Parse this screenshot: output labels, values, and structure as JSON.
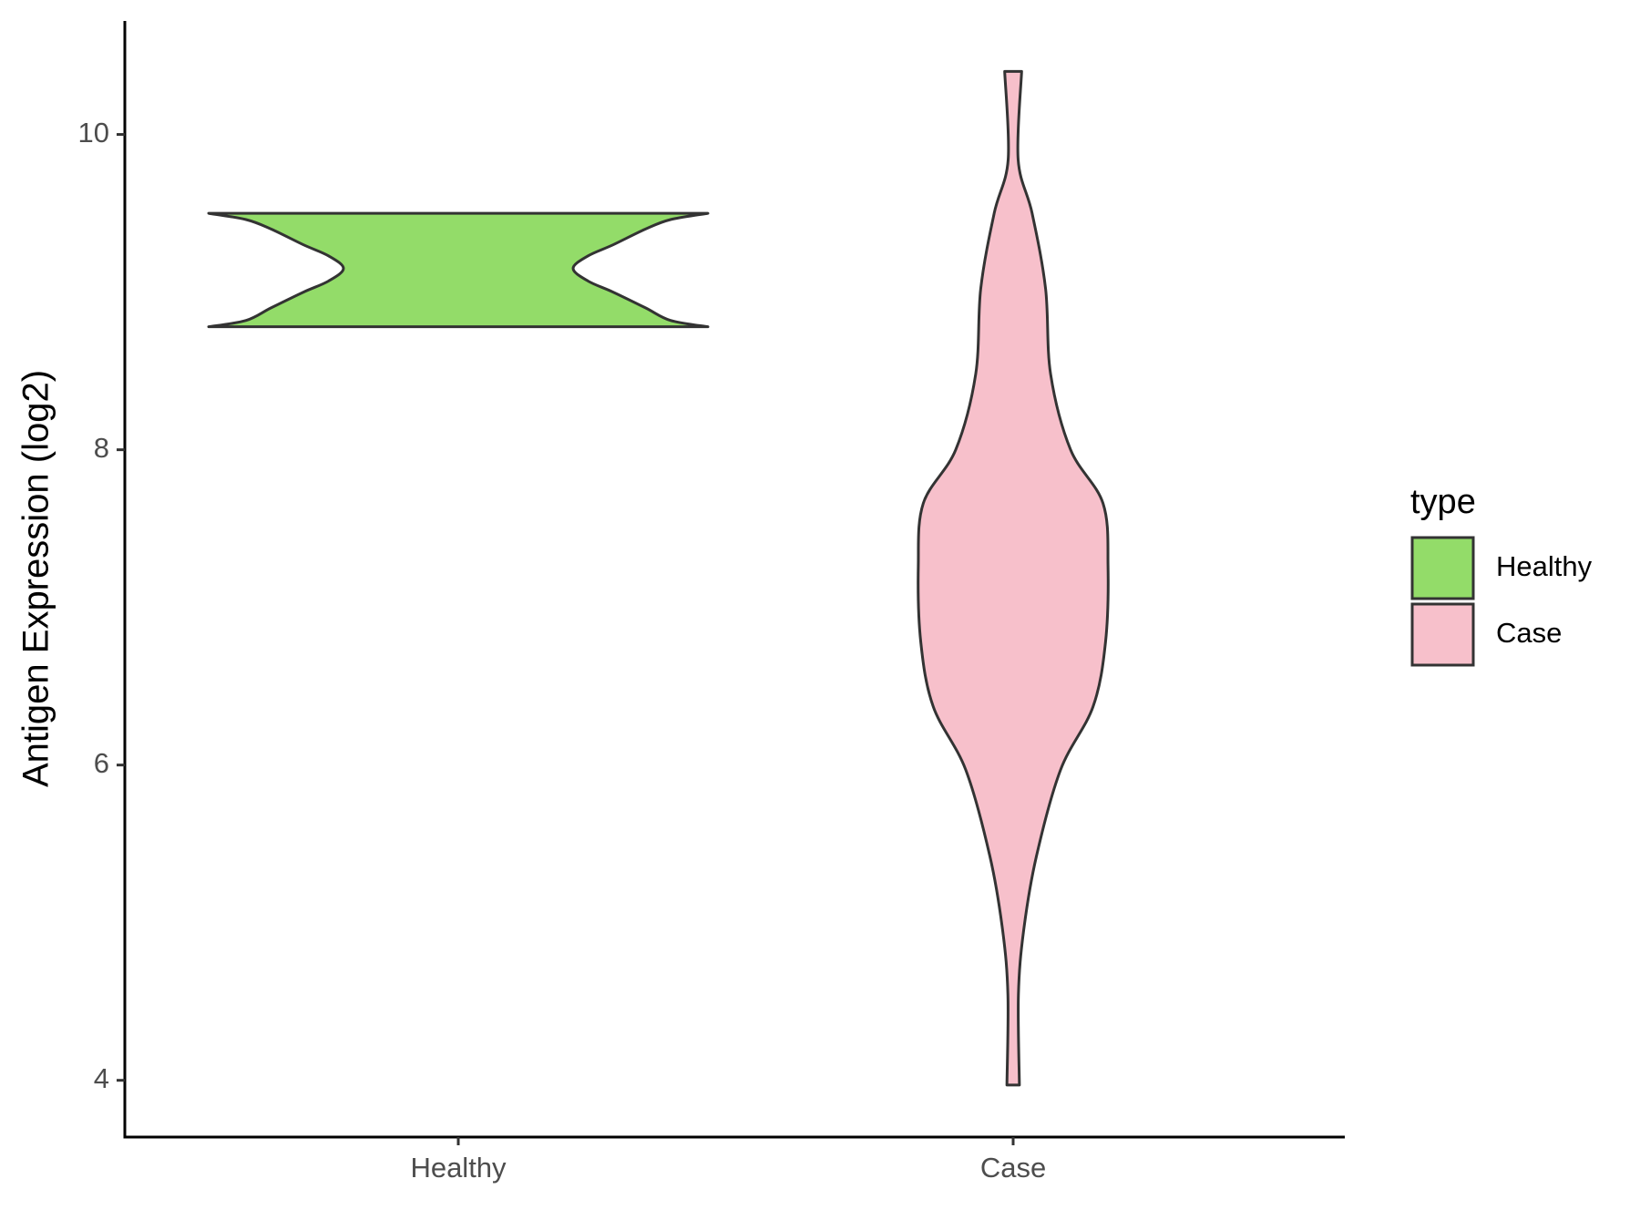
{
  "chart_data": {
    "type": "violin",
    "y_label": "Antigen Expression (log2)",
    "legend_title": "type",
    "categories": [
      "Healthy",
      "Case"
    ],
    "series": [
      {
        "name": "Healthy",
        "color": "#93dc69",
        "y": [
          8.78,
          8.82,
          8.9,
          9.0,
          9.07,
          9.15,
          9.23,
          9.3,
          9.4,
          9.46,
          9.5
        ],
        "width": [
          1.0,
          0.85,
          0.75,
          0.62,
          0.52,
          0.46,
          0.52,
          0.62,
          0.75,
          0.85,
          1.0
        ]
      },
      {
        "name": "Case",
        "color": "#f7c0cb",
        "y": [
          3.97,
          4.54,
          4.95,
          5.42,
          5.97,
          6.37,
          6.78,
          7.26,
          7.66,
          8.0,
          8.48,
          9.02,
          9.5,
          9.84,
          10.4
        ],
        "width": [
          0.025,
          0.021,
          0.042,
          0.093,
          0.19,
          0.32,
          0.37,
          0.38,
          0.36,
          0.23,
          0.15,
          0.13,
          0.076,
          0.02,
          0.034
        ]
      }
    ],
    "ylim": [
      3.64,
      10.72
    ],
    "yticks": [
      4,
      6,
      8,
      10
    ]
  }
}
